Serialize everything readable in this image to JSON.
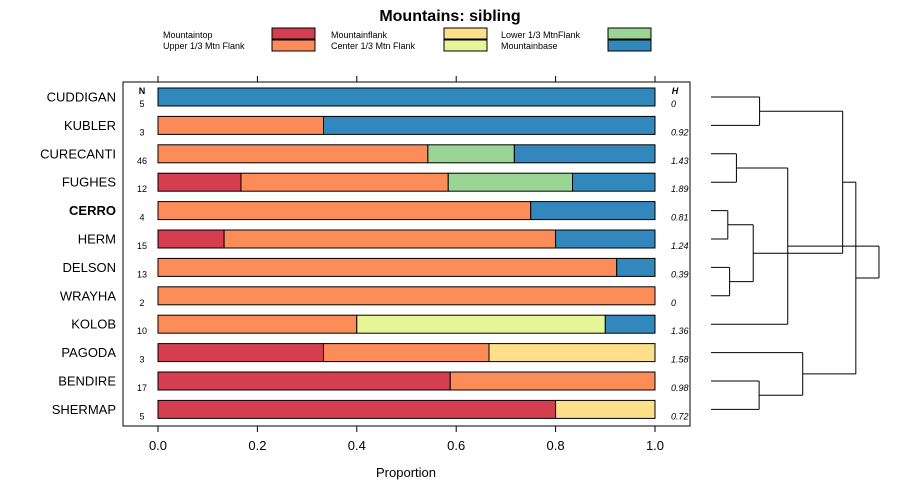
{
  "chart_data": {
    "type": "bar",
    "orientation": "horizontal",
    "stacked": true,
    "title": "Mountains: sibling",
    "xlabel": "Proportion",
    "ylabel": "",
    "xlim": [
      0,
      1
    ],
    "x_ticks": [
      "0.0",
      "0.2",
      "0.4",
      "0.6",
      "0.8",
      "1.0"
    ],
    "n_header": "N",
    "h_header": "H",
    "legend_position": "top",
    "legend": [
      {
        "name": "Mountaintop",
        "color": "#d53e4f"
      },
      {
        "name": "Upper 1/3 Mtn Flank",
        "color": "#fc8d59"
      },
      {
        "name": "Mountainflank",
        "color": "#fee08b"
      },
      {
        "name": "Center 1/3 Mtn Flank",
        "color": "#e6f598"
      },
      {
        "name": "Lower 1/3 MtnFlank",
        "color": "#99d594"
      },
      {
        "name": "Mountainbase",
        "color": "#3288bd"
      }
    ],
    "rows": [
      {
        "label": "CUDDIGAN",
        "bold": false,
        "n": "5",
        "h": "0",
        "values": [
          0,
          0,
          0,
          0,
          0,
          1.0
        ]
      },
      {
        "label": "KUBLER",
        "bold": false,
        "n": "3",
        "h": "0.92",
        "values": [
          0,
          0.333,
          0,
          0,
          0,
          0.667
        ]
      },
      {
        "label": "CURECANTI",
        "bold": false,
        "n": "46",
        "h": "1.43",
        "values": [
          0,
          0.543,
          0,
          0,
          0.174,
          0.283
        ]
      },
      {
        "label": "FUGHES",
        "bold": false,
        "n": "12",
        "h": "1.89",
        "values": [
          0.167,
          0.417,
          0,
          0,
          0.25,
          0.166
        ]
      },
      {
        "label": "CERRO",
        "bold": true,
        "n": "4",
        "h": "0.81",
        "values": [
          0,
          0.75,
          0,
          0,
          0,
          0.25
        ]
      },
      {
        "label": "HERM",
        "bold": false,
        "n": "15",
        "h": "1.24",
        "values": [
          0.133,
          0.667,
          0,
          0,
          0,
          0.2
        ]
      },
      {
        "label": "DELSON",
        "bold": false,
        "n": "13",
        "h": "0.39",
        "values": [
          0,
          0.923,
          0,
          0,
          0,
          0.077
        ]
      },
      {
        "label": "WRAYHA",
        "bold": false,
        "n": "2",
        "h": "0",
        "values": [
          0,
          1.0,
          0,
          0,
          0,
          0
        ]
      },
      {
        "label": "KOLOB",
        "bold": false,
        "n": "10",
        "h": "1.36",
        "values": [
          0,
          0.4,
          0,
          0.5,
          0,
          0.1
        ]
      },
      {
        "label": "PAGODA",
        "bold": false,
        "n": "3",
        "h": "1.58",
        "values": [
          0.333,
          0.333,
          0.334,
          0,
          0,
          0
        ]
      },
      {
        "label": "BENDIRE",
        "bold": false,
        "n": "17",
        "h": "0.98",
        "values": [
          0.588,
          0.412,
          0,
          0,
          0,
          0
        ]
      },
      {
        "label": "SHERMAP",
        "bold": false,
        "n": "5",
        "h": "0.72",
        "values": [
          0.8,
          0,
          0.2,
          0,
          0,
          0
        ]
      }
    ],
    "dendrogram": {
      "leaves": [
        "CUDDIGAN",
        "KUBLER",
        "CURECANTI",
        "FUGHES",
        "CERRO",
        "HERM",
        "DELSON",
        "WRAYHA",
        "KOLOB",
        "PAGODA",
        "BENDIRE",
        "SHERMAP"
      ],
      "merges": [
        {
          "left": 4,
          "right": 5,
          "height": 0.37
        },
        {
          "left": 6,
          "right": 7,
          "height": 0.41
        },
        {
          "left": 2,
          "right": 3,
          "height": 0.56
        },
        {
          "left": 12,
          "right": 13,
          "height": 0.93
        },
        {
          "left": 10,
          "right": 11,
          "height": 1.06
        },
        {
          "left": 0,
          "right": 1,
          "height": 1.07
        },
        {
          "left": 14,
          "right": 8,
          "height": 1.69
        },
        {
          "left": 9,
          "right": 16,
          "height": 2.02
        },
        {
          "left": 15,
          "right": 17,
          "height": 2.9
        },
        {
          "left": 19,
          "right": 20,
          "height": 3.19
        },
        {
          "left": 18,
          "right": 21,
          "height": 3.7
        }
      ]
    }
  }
}
